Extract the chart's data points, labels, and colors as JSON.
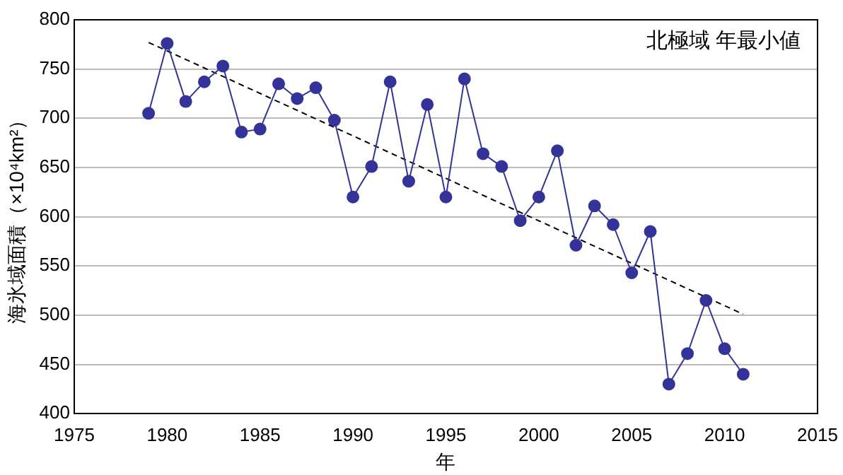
{
  "chart_data": {
    "type": "line",
    "xlabel": "年",
    "ylabel": "海氷域面積（×10⁴km²）",
    "annotations": [
      "北極域 年最小値"
    ],
    "x": [
      1979,
      1980,
      1981,
      1982,
      1983,
      1984,
      1985,
      1986,
      1987,
      1988,
      1989,
      1990,
      1991,
      1992,
      1993,
      1994,
      1995,
      1996,
      1997,
      1998,
      1999,
      2000,
      2001,
      2002,
      2003,
      2004,
      2005,
      2006,
      2007,
      2008,
      2009,
      2010,
      2011
    ],
    "series": [
      {
        "color": "#333399",
        "marker": "circle",
        "line_style": "solid",
        "values": [
          705,
          776,
          717,
          737,
          753,
          686,
          689,
          735,
          720,
          731,
          698,
          620,
          651,
          737,
          636,
          714,
          620,
          740,
          664,
          651,
          596,
          620,
          667,
          571,
          611,
          592,
          543,
          585,
          430,
          461,
          515,
          466,
          440
        ]
      },
      {
        "type": "line",
        "color": "#000000",
        "marker": "none",
        "line_style": "dashed",
        "x": [
          1979,
          2011
        ],
        "values": [
          777,
          501
        ]
      }
    ],
    "xlim": [
      1975,
      2015
    ],
    "xticks": [
      1975,
      1980,
      1985,
      1990,
      1995,
      2000,
      2005,
      2010,
      2015
    ],
    "ylim": [
      400,
      800
    ],
    "yticks": [
      400,
      450,
      500,
      550,
      600,
      650,
      700,
      750,
      800
    ],
    "grid": "y",
    "legend": false
  }
}
